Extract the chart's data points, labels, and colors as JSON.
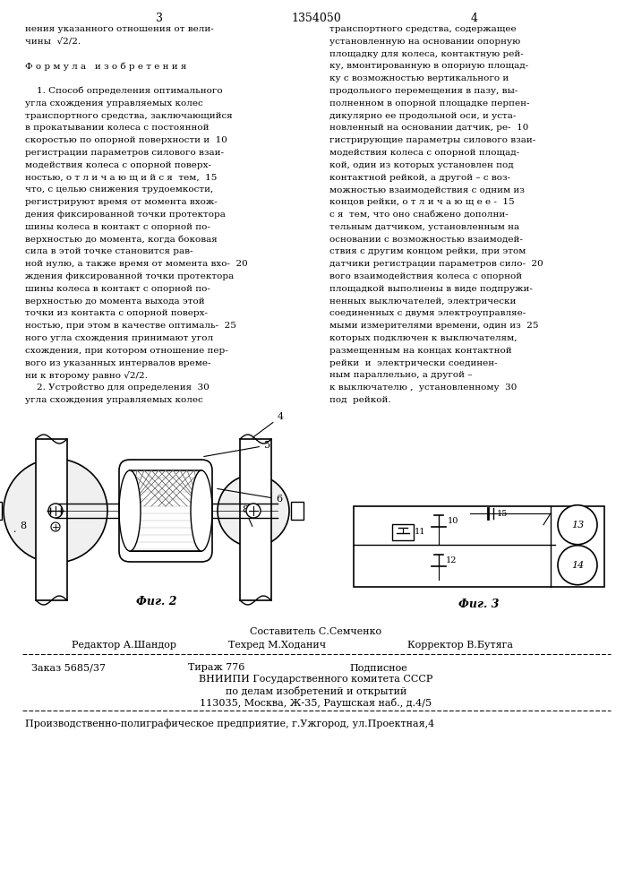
{
  "bg_color": "#ffffff",
  "page_number_left": "3",
  "page_center": "1354050",
  "page_number_right": "4",
  "col_left_lines": [
    "нения указанного отношения от вели-",
    "чины  √2/2.",
    "",
    "Ф о р м у л а   и з о б р е т е н и я",
    "",
    "    1. Способ определения оптимального",
    "угла схождения управляемых колес",
    "транспортного средства, заключающийся",
    "в прокатывании колеса с постоянной",
    "скоростью по опорной поверхности и  10",
    "регистрации параметров силового взаи-",
    "модействия колеса с опорной поверх-",
    "ностью, о т л и ч а ю щ и й с я  тем,  15",
    "что, с целью снижения трудоемкости,",
    "регистрируют время от момента вхож-",
    "дения фиксированной точки протектора",
    "шины колеса в контакт с опорной по-",
    "верхностью до момента, когда боковая",
    "сила в этой точке становится рав-",
    "ной нулю, а также время от момента вхо-  20",
    "ждения фиксированной точки протектора",
    "шины колеса в контакт с опорной по-",
    "верхностью до момента выхода этой",
    "точки из контакта с опорной поверх-",
    "ностью, при этом в качестве оптималь-  25",
    "ного угла схождения принимают угол",
    "схождения, при котором отношение пер-",
    "вого из указанных интервалов време-",
    "ни к второму равно √2/2.",
    "    2. Устройство для определения  30",
    "угла схождения управляемых колес"
  ],
  "col_right_lines": [
    "транспортного средства, содержащее",
    "установленную на основании опорную",
    "площадку для колеса, контактную рей-",
    "ку, вмонтированную в опорную площад-",
    "ку с возможностью вертикального и",
    "продольного перемещения в пазу, вы-",
    "полненном в опорной площадке перпен-",
    "дикулярно ее продольной оси, и уста-",
    "новленный на основании датчик, ре-  10",
    "гистрирующие параметры силового взаи-",
    "модействия колеса с опорной площад-",
    "кой, один из которых установлен под",
    "контактной рейкой, а другой – с воз-",
    "можностью взаимодействия с одним из",
    "концов рейки, о т л и ч а ю щ е е -  15",
    "с я  тем, что оно снабжено дополни-",
    "тельным датчиком, установленным на",
    "основании с возможностью взаимодей-",
    "ствия с другим концом рейки, при этом",
    "датчики регистрации параметров сило-  20",
    "вого взаимодействия колеса с опорной",
    "площадкой выполнены в виде подпружи-",
    "ненных выключателей, электрически",
    "соединенных с двумя электроуправляе-",
    "мыми измерителями времени, один из  25",
    "которых подключен к выключателям,",
    "размещенным на концах контактной",
    "рейки  и  электрически соединен-",
    "ным параллельно, а другой –",
    "к выключателю ,  установленному  30",
    "под  рейкой."
  ],
  "fig2_label": "Фиг. 2",
  "fig3_label": "Фиг. 3",
  "footer_sestavitel": "Составитель С.Семченко",
  "footer_redaktor": "Редактор А.Шандор",
  "footer_tehred": "Техред М.Ходанич",
  "footer_korrektor": "Корректор В.Бутяга",
  "footer_zakaz": "Заказ 5685/37",
  "footer_tirazh": "Тираж 776",
  "footer_podpisnoe": "Подписное",
  "footer_vnipi": "ВНИИПИ Государственного комитета СССР",
  "footer_po_delam": "по делам изобретений и открытий",
  "footer_address": "113035, Москва, Ж-35, Раушская наб., д.4/5",
  "footer_printing": "Производственно-полиграфическое предприятие, г.Ужгород, ул.Проектная,4"
}
